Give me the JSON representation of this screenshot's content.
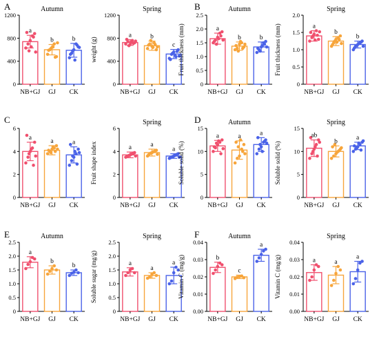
{
  "figure": {
    "panel_letters": [
      "A",
      "B",
      "C",
      "D",
      "E",
      "F"
    ],
    "colors": {
      "NB+GJ": "#f0506e",
      "GJ": "#f7a53b",
      "CK": "#4a62e8"
    }
  },
  "chart_data": [
    {
      "type": "bar",
      "panel": "A",
      "title": "Autumn",
      "ylabel": "weight (g)",
      "xlabel": "",
      "categories": [
        "NB+GJ",
        "GJ",
        "CK"
      ],
      "ylim": [
        0,
        1200
      ],
      "yticks": [
        0,
        400,
        800,
        1200
      ],
      "values": [
        740,
        600,
        590
      ],
      "errors": [
        110,
        90,
        120
      ],
      "letters": [
        "a",
        "b",
        "b"
      ],
      "points": [
        [
          630,
          700,
          760,
          840,
          880,
          900,
          580,
          650,
          820,
          560
        ],
        [
          520,
          600,
          640,
          700,
          480,
          590,
          620,
          650,
          470,
          720
        ],
        [
          460,
          540,
          600,
          700,
          650,
          520,
          580,
          420,
          680,
          640
        ]
      ]
    },
    {
      "type": "bar",
      "panel": "A",
      "title": "Spring",
      "ylabel": "weight (g)",
      "xlabel": "",
      "categories": [
        "NB+GJ",
        "GJ",
        "CK"
      ],
      "ylim": [
        0,
        1200
      ],
      "yticks": [
        0,
        400,
        800,
        1200
      ],
      "values": [
        725,
        670,
        525
      ],
      "errors": [
        50,
        80,
        80
      ],
      "letters": [
        "a",
        "b",
        "c"
      ],
      "points": [
        [
          700,
          740,
          690,
          760,
          720,
          780,
          670,
          730,
          710,
          750
        ],
        [
          620,
          700,
          660,
          720,
          600,
          680,
          760,
          640,
          690,
          650
        ],
        [
          450,
          520,
          560,
          480,
          600,
          430,
          540,
          510,
          570,
          490
        ]
      ]
    },
    {
      "type": "bar",
      "panel": "B",
      "title": "Autumn",
      "ylabel": "Fruit thickness (mm)",
      "xlabel": "",
      "categories": [
        "NB+GJ",
        "GJ",
        "CK"
      ],
      "ylim": [
        0,
        2.5
      ],
      "yticks": [
        0,
        0.5,
        1.0,
        1.5,
        2.0,
        2.5
      ],
      "values": [
        1.65,
        1.38,
        1.35
      ],
      "errors": [
        0.2,
        0.15,
        0.18
      ],
      "letters": [
        "a",
        "b",
        "b"
      ],
      "points": [
        [
          1.5,
          1.6,
          1.7,
          1.85,
          1.9,
          1.55,
          1.45,
          1.65,
          1.75,
          1.6
        ],
        [
          1.25,
          1.3,
          1.45,
          1.5,
          1.35,
          1.4,
          1.2,
          1.55,
          1.3,
          1.45
        ],
        [
          1.15,
          1.25,
          1.35,
          1.5,
          1.55,
          1.3,
          1.2,
          1.4,
          1.45,
          1.35
        ]
      ]
    },
    {
      "type": "bar",
      "panel": "B",
      "title": "Spring",
      "ylabel": "Fruit thickness (mm)",
      "xlabel": "",
      "categories": [
        "NB+GJ",
        "GJ",
        "CK"
      ],
      "ylim": [
        0,
        2.0
      ],
      "yticks": [
        0,
        0.5,
        1.0,
        1.5,
        2.0
      ],
      "values": [
        1.4,
        1.25,
        1.15
      ],
      "errors": [
        0.15,
        0.13,
        0.1
      ],
      "letters": [
        "a",
        "b",
        "b"
      ],
      "points": [
        [
          1.25,
          1.35,
          1.45,
          1.55,
          1.3,
          1.5,
          1.4,
          1.28,
          1.42,
          1.52
        ],
        [
          1.1,
          1.2,
          1.3,
          1.35,
          1.4,
          1.15,
          1.25,
          1.22,
          1.3,
          1.18
        ],
        [
          1.0,
          1.1,
          1.15,
          1.2,
          1.25,
          1.05,
          1.12,
          1.18,
          1.22,
          1.1
        ]
      ]
    },
    {
      "type": "bar",
      "panel": "C",
      "title": "",
      "ylabel": "Fruit shape index",
      "xlabel": "",
      "categories": [
        "NB+GJ",
        "GJ",
        "CK"
      ],
      "ylim": [
        0,
        6
      ],
      "yticks": [
        0,
        2,
        4,
        6
      ],
      "values": [
        4.0,
        4.1,
        3.7
      ],
      "errors": [
        0.8,
        0.4,
        0.7
      ],
      "letters": [
        "a",
        "a",
        "a"
      ],
      "points": [
        [
          3.0,
          3.5,
          4.0,
          4.3,
          4.8,
          5.4,
          3.8,
          4.2,
          2.8,
          3.6
        ],
        [
          3.8,
          4.0,
          4.2,
          4.3,
          4.5,
          4.1,
          3.9,
          4.4,
          4.0,
          4.2
        ],
        [
          2.8,
          3.2,
          3.5,
          3.8,
          4.2,
          4.6,
          3.6,
          4.0,
          2.9,
          3.9
        ]
      ]
    },
    {
      "type": "bar",
      "panel": "C",
      "title": "Spring",
      "ylabel": "Fruit shape index",
      "xlabel": "",
      "categories": [
        "NB+GJ",
        "GJ",
        "CK"
      ],
      "ylim": [
        0,
        6
      ],
      "yticks": [
        0,
        2,
        4,
        6
      ],
      "values": [
        3.7,
        3.9,
        3.6
      ],
      "errors": [
        0.25,
        0.3,
        0.2
      ],
      "letters": [
        "a",
        "a",
        "a"
      ],
      "points": [
        [
          3.5,
          3.6,
          3.7,
          3.8,
          3.9,
          3.55,
          3.65,
          3.75,
          3.85,
          3.6
        ],
        [
          3.6,
          3.8,
          3.9,
          4.0,
          4.1,
          3.7,
          3.85,
          3.95,
          4.05,
          3.75
        ],
        [
          3.4,
          3.5,
          3.6,
          3.7,
          3.8,
          3.45,
          3.55,
          3.65,
          3.75,
          3.5
        ]
      ]
    },
    {
      "type": "bar",
      "panel": "D",
      "title": "Autumn",
      "ylabel": "Soluble solid (%)",
      "xlabel": "",
      "categories": [
        "NB+GJ",
        "GJ",
        "CK"
      ],
      "ylim": [
        0,
        15
      ],
      "yticks": [
        0,
        5,
        10,
        15
      ],
      "values": [
        11.2,
        10.3,
        11.5
      ],
      "errors": [
        1.2,
        2.0,
        1.5
      ],
      "letters": [
        "a",
        "a",
        "a"
      ],
      "points": [
        [
          10.0,
          10.8,
          11.5,
          12.0,
          12.5,
          11.0,
          11.8,
          12.3,
          9.5,
          10.6
        ],
        [
          7.5,
          8.5,
          9.0,
          10.5,
          11.5,
          12.0,
          11.0,
          12.5,
          10.0,
          9.5
        ],
        [
          9.5,
          10.5,
          11.0,
          12.0,
          12.5,
          13.0,
          11.5,
          10.0,
          12.2,
          11.8
        ]
      ]
    },
    {
      "type": "bar",
      "panel": "D",
      "title": "Spring",
      "ylabel": "Soluble solid (%)",
      "xlabel": "",
      "categories": [
        "NB+GJ",
        "GJ",
        "CK"
      ],
      "ylim": [
        0,
        15
      ],
      "yticks": [
        0,
        5,
        10,
        15
      ],
      "values": [
        10.7,
        10.0,
        11.2
      ],
      "errors": [
        1.8,
        1.2,
        0.8
      ],
      "letters": [
        "ab",
        "b",
        "a"
      ],
      "points": [
        [
          8.5,
          9.5,
          10.5,
          11.5,
          12.5,
          13.0,
          10.0,
          11.0,
          9.0,
          12.0
        ],
        [
          8.5,
          9.0,
          9.5,
          10.0,
          10.5,
          11.0,
          11.5,
          9.8,
          10.2,
          10.8
        ],
        [
          10.0,
          10.5,
          11.0,
          11.5,
          12.0,
          11.2,
          10.8,
          11.8,
          10.3,
          12.3
        ]
      ]
    },
    {
      "type": "bar",
      "panel": "E",
      "title": "Autumn",
      "ylabel": "Soluble sugar (mg/g)",
      "xlabel": "",
      "categories": [
        "NB+GJ",
        "GJ",
        "CK"
      ],
      "ylim": [
        0,
        2.5
      ],
      "yticks": [
        0,
        0.5,
        1.0,
        1.5,
        2.0,
        2.5
      ],
      "values": [
        1.78,
        1.5,
        1.4
      ],
      "errors": [
        0.2,
        0.15,
        0.1
      ],
      "letters": [
        "a",
        "b",
        "b"
      ],
      "points": [
        [
          1.55,
          1.7,
          1.8,
          1.95,
          1.9
        ],
        [
          1.35,
          1.45,
          1.55,
          1.65,
          1.5
        ],
        [
          1.3,
          1.38,
          1.42,
          1.5,
          1.4
        ]
      ]
    },
    {
      "type": "bar",
      "panel": "E",
      "title": "Spring",
      "ylabel": "Soluble sugar (mg/g)",
      "xlabel": "",
      "categories": [
        "NB+GJ",
        "GJ",
        "CK"
      ],
      "ylim": [
        0,
        2.5
      ],
      "yticks": [
        0,
        0.5,
        1.0,
        1.5,
        2.0,
        2.5
      ],
      "values": [
        1.43,
        1.3,
        1.3
      ],
      "errors": [
        0.15,
        0.1,
        0.3
      ],
      "letters": [
        "a",
        "a",
        "a"
      ],
      "points": [
        [
          1.3,
          1.4,
          1.5,
          1.55,
          1.4
        ],
        [
          1.2,
          1.25,
          1.35,
          1.4,
          1.3
        ],
        [
          1.0,
          1.1,
          1.4,
          1.6,
          1.5
        ]
      ]
    },
    {
      "type": "bar",
      "panel": "F",
      "title": "Autumn",
      "ylabel": "Vitamin C (mg/g)",
      "xlabel": "",
      "categories": [
        "NB+GJ",
        "GJ",
        "CK"
      ],
      "ylim": [
        0,
        0.04
      ],
      "yticks": [
        0,
        0.01,
        0.02,
        0.03,
        0.04
      ],
      "ytick_labels": [
        "0.00",
        "0.01",
        "0.02",
        "0.03",
        "0.04"
      ],
      "values": [
        0.0255,
        0.02,
        0.0325
      ],
      "errors": [
        0.003,
        0.001,
        0.0035
      ],
      "letters": [
        "b",
        "c",
        "a"
      ],
      "points": [
        [
          0.022,
          0.024,
          0.026,
          0.028,
          0.027
        ],
        [
          0.019,
          0.0198,
          0.0202,
          0.0205,
          0.0195
        ],
        [
          0.029,
          0.031,
          0.033,
          0.035,
          0.036
        ]
      ]
    },
    {
      "type": "bar",
      "panel": "F",
      "title": "Spring",
      "ylabel": "Vitamin C (mg/g)",
      "xlabel": "",
      "categories": [
        "NB+GJ",
        "GJ",
        "CK"
      ],
      "ylim": [
        0,
        0.04
      ],
      "yticks": [
        0,
        0.01,
        0.02,
        0.03,
        0.04
      ],
      "ytick_labels": [
        "0.00",
        "0.01",
        "0.02",
        "0.03",
        "0.04"
      ],
      "values": [
        0.0225,
        0.021,
        0.023
      ],
      "errors": [
        0.0045,
        0.005,
        0.006
      ],
      "letters": [
        "a",
        "a",
        "a"
      ],
      "points": [
        [
          0.018,
          0.02,
          0.024,
          0.027,
          0.026
        ],
        [
          0.015,
          0.018,
          0.022,
          0.026,
          0.024
        ],
        [
          0.016,
          0.019,
          0.024,
          0.028,
          0.029
        ]
      ]
    }
  ]
}
